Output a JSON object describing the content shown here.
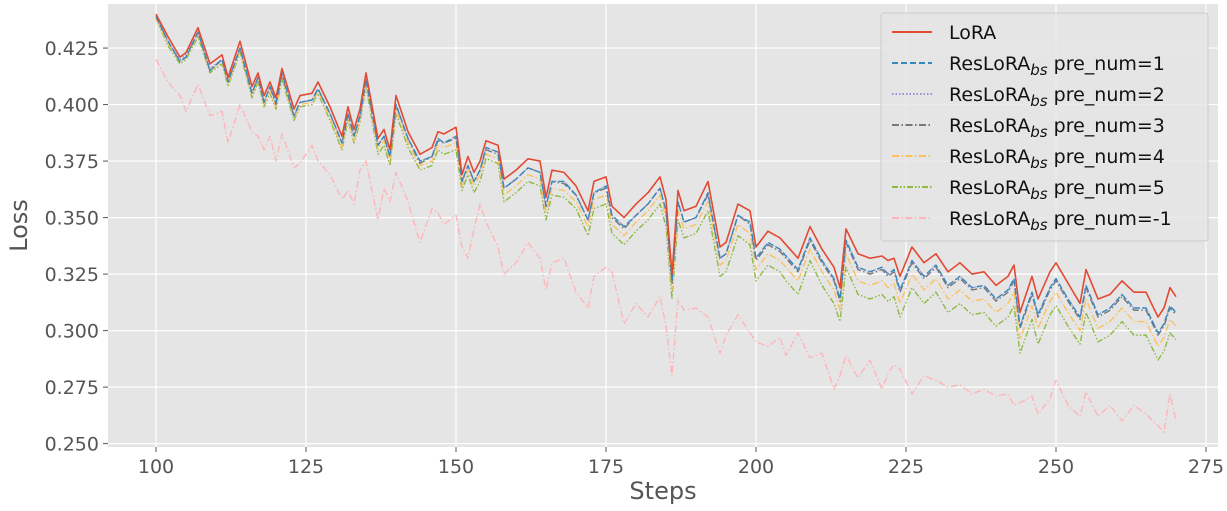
{
  "chart_data": {
    "type": "line",
    "title": "",
    "xlabel": "Steps",
    "ylabel": "Loss",
    "xlim": [
      92,
      277
    ],
    "ylim": [
      0.2485,
      0.4445
    ],
    "x_ticks": [
      100,
      125,
      150,
      175,
      200,
      225,
      250,
      275
    ],
    "x_tick_labels": [
      "100",
      "125",
      "150",
      "175",
      "200",
      "225",
      "250",
      "275"
    ],
    "y_ticks": [
      0.25,
      0.275,
      0.3,
      0.325,
      0.35,
      0.375,
      0.4,
      0.425
    ],
    "y_tick_labels": [
      "0.250",
      "0.275",
      "0.300",
      "0.325",
      "0.350",
      "0.375",
      "0.400",
      "0.425"
    ],
    "grid": true,
    "legend_position": "top-right",
    "x": [
      100,
      102,
      104,
      105,
      107,
      109,
      111,
      112,
      114,
      116,
      117,
      118,
      119,
      120,
      121,
      123,
      124,
      126,
      127,
      129,
      131,
      132,
      133,
      134,
      135,
      137,
      138,
      139,
      140,
      142,
      144,
      146,
      147,
      148,
      150,
      151,
      152,
      153,
      154,
      155,
      157,
      158,
      160,
      162,
      164,
      165,
      166,
      168,
      170,
      172,
      173,
      175,
      176,
      178,
      180,
      182,
      184,
      185,
      186,
      187,
      188,
      190,
      192,
      194,
      195,
      197,
      199,
      200,
      202,
      204,
      205,
      207,
      209,
      211,
      213,
      214,
      215,
      217,
      219,
      221,
      222,
      223,
      224,
      226,
      228,
      230,
      232,
      234,
      236,
      238,
      240,
      242,
      243,
      244,
      246,
      247,
      249,
      250,
      252,
      254,
      255,
      257,
      259,
      261,
      263,
      265,
      267,
      268,
      269,
      270
    ],
    "series": [
      {
        "name": "LoRA",
        "sub": "",
        "suffix": "",
        "color": "#E24A33",
        "style": "solid",
        "values": [
          0.44,
          0.43,
          0.421,
          0.423,
          0.434,
          0.418,
          0.422,
          0.412,
          0.428,
          0.408,
          0.414,
          0.404,
          0.41,
          0.403,
          0.416,
          0.398,
          0.404,
          0.405,
          0.41,
          0.399,
          0.386,
          0.399,
          0.389,
          0.398,
          0.414,
          0.385,
          0.389,
          0.38,
          0.404,
          0.388,
          0.378,
          0.381,
          0.388,
          0.387,
          0.39,
          0.369,
          0.377,
          0.37,
          0.375,
          0.384,
          0.382,
          0.367,
          0.371,
          0.376,
          0.375,
          0.359,
          0.371,
          0.37,
          0.364,
          0.353,
          0.366,
          0.368,
          0.355,
          0.35,
          0.356,
          0.361,
          0.368,
          0.358,
          0.325,
          0.362,
          0.353,
          0.355,
          0.366,
          0.337,
          0.339,
          0.356,
          0.353,
          0.337,
          0.344,
          0.341,
          0.338,
          0.332,
          0.346,
          0.336,
          0.328,
          0.319,
          0.345,
          0.334,
          0.332,
          0.333,
          0.331,
          0.332,
          0.324,
          0.337,
          0.33,
          0.334,
          0.326,
          0.33,
          0.325,
          0.326,
          0.32,
          0.324,
          0.329,
          0.308,
          0.324,
          0.314,
          0.326,
          0.33,
          0.321,
          0.312,
          0.327,
          0.314,
          0.316,
          0.322,
          0.317,
          0.317,
          0.306,
          0.31,
          0.319,
          0.315
        ]
      },
      {
        "name": "ResLoRA",
        "sub": "bs",
        "suffix": " pre_num=1",
        "color": "#348ABD",
        "style": "dashed",
        "values": [
          0.439,
          0.428,
          0.419,
          0.421,
          0.432,
          0.415,
          0.42,
          0.41,
          0.425,
          0.405,
          0.412,
          0.401,
          0.408,
          0.401,
          0.414,
          0.395,
          0.401,
          0.402,
          0.407,
          0.396,
          0.383,
          0.396,
          0.386,
          0.395,
          0.411,
          0.382,
          0.386,
          0.377,
          0.4,
          0.385,
          0.375,
          0.377,
          0.385,
          0.383,
          0.386,
          0.366,
          0.373,
          0.366,
          0.371,
          0.381,
          0.379,
          0.363,
          0.367,
          0.372,
          0.37,
          0.355,
          0.366,
          0.366,
          0.36,
          0.349,
          0.361,
          0.364,
          0.351,
          0.346,
          0.351,
          0.356,
          0.363,
          0.353,
          0.322,
          0.357,
          0.348,
          0.35,
          0.361,
          0.332,
          0.334,
          0.351,
          0.348,
          0.332,
          0.339,
          0.336,
          0.333,
          0.327,
          0.341,
          0.331,
          0.323,
          0.314,
          0.34,
          0.328,
          0.326,
          0.328,
          0.325,
          0.327,
          0.318,
          0.331,
          0.324,
          0.329,
          0.32,
          0.324,
          0.319,
          0.32,
          0.314,
          0.318,
          0.323,
          0.302,
          0.317,
          0.307,
          0.319,
          0.323,
          0.314,
          0.306,
          0.32,
          0.307,
          0.31,
          0.316,
          0.31,
          0.31,
          0.299,
          0.303,
          0.311,
          0.308
        ]
      },
      {
        "name": "ResLoRA",
        "sub": "bs",
        "suffix": " pre_num=2",
        "color": "#988ED5",
        "style": "dotted",
        "values": [
          0.439,
          0.428,
          0.42,
          0.422,
          0.432,
          0.416,
          0.42,
          0.41,
          0.425,
          0.405,
          0.412,
          0.401,
          0.408,
          0.401,
          0.414,
          0.395,
          0.401,
          0.402,
          0.407,
          0.396,
          0.383,
          0.396,
          0.386,
          0.395,
          0.411,
          0.382,
          0.386,
          0.377,
          0.4,
          0.385,
          0.375,
          0.377,
          0.385,
          0.383,
          0.386,
          0.366,
          0.373,
          0.366,
          0.371,
          0.381,
          0.379,
          0.363,
          0.367,
          0.372,
          0.37,
          0.355,
          0.366,
          0.366,
          0.36,
          0.349,
          0.361,
          0.364,
          0.351,
          0.346,
          0.351,
          0.356,
          0.363,
          0.353,
          0.322,
          0.357,
          0.348,
          0.35,
          0.361,
          0.332,
          0.334,
          0.351,
          0.348,
          0.332,
          0.339,
          0.336,
          0.333,
          0.327,
          0.341,
          0.331,
          0.323,
          0.314,
          0.34,
          0.328,
          0.326,
          0.328,
          0.325,
          0.327,
          0.318,
          0.331,
          0.324,
          0.329,
          0.32,
          0.324,
          0.319,
          0.32,
          0.314,
          0.318,
          0.323,
          0.302,
          0.317,
          0.307,
          0.319,
          0.323,
          0.314,
          0.306,
          0.32,
          0.307,
          0.31,
          0.316,
          0.31,
          0.31,
          0.299,
          0.303,
          0.311,
          0.308
        ]
      },
      {
        "name": "ResLoRA",
        "sub": "bs",
        "suffix": " pre_num=3",
        "color": "#777777",
        "style": "dashdot",
        "values": [
          0.439,
          0.428,
          0.419,
          0.421,
          0.432,
          0.415,
          0.42,
          0.41,
          0.425,
          0.405,
          0.412,
          0.401,
          0.408,
          0.4,
          0.413,
          0.395,
          0.401,
          0.402,
          0.407,
          0.396,
          0.383,
          0.396,
          0.386,
          0.395,
          0.411,
          0.382,
          0.386,
          0.377,
          0.4,
          0.385,
          0.374,
          0.377,
          0.384,
          0.383,
          0.385,
          0.366,
          0.373,
          0.366,
          0.371,
          0.38,
          0.378,
          0.363,
          0.367,
          0.372,
          0.37,
          0.355,
          0.366,
          0.365,
          0.36,
          0.349,
          0.361,
          0.363,
          0.35,
          0.345,
          0.351,
          0.356,
          0.363,
          0.353,
          0.321,
          0.357,
          0.348,
          0.35,
          0.36,
          0.332,
          0.334,
          0.351,
          0.347,
          0.331,
          0.338,
          0.335,
          0.332,
          0.326,
          0.34,
          0.33,
          0.322,
          0.313,
          0.339,
          0.327,
          0.325,
          0.327,
          0.324,
          0.326,
          0.317,
          0.33,
          0.323,
          0.328,
          0.319,
          0.323,
          0.318,
          0.319,
          0.313,
          0.317,
          0.322,
          0.301,
          0.316,
          0.306,
          0.318,
          0.322,
          0.313,
          0.305,
          0.319,
          0.306,
          0.309,
          0.315,
          0.309,
          0.309,
          0.298,
          0.302,
          0.31,
          0.307
        ]
      },
      {
        "name": "ResLoRA",
        "sub": "bs",
        "suffix": " pre_num=4",
        "color": "#FBC15E",
        "style": "dashdot",
        "values": [
          0.438,
          0.427,
          0.419,
          0.421,
          0.431,
          0.415,
          0.419,
          0.409,
          0.424,
          0.404,
          0.411,
          0.4,
          0.406,
          0.399,
          0.412,
          0.394,
          0.4,
          0.401,
          0.406,
          0.394,
          0.381,
          0.394,
          0.384,
          0.393,
          0.409,
          0.38,
          0.384,
          0.375,
          0.398,
          0.383,
          0.373,
          0.375,
          0.382,
          0.381,
          0.383,
          0.364,
          0.371,
          0.364,
          0.369,
          0.378,
          0.376,
          0.36,
          0.364,
          0.369,
          0.367,
          0.352,
          0.363,
          0.362,
          0.357,
          0.346,
          0.358,
          0.36,
          0.347,
          0.342,
          0.348,
          0.353,
          0.36,
          0.35,
          0.318,
          0.353,
          0.345,
          0.347,
          0.357,
          0.329,
          0.331,
          0.347,
          0.343,
          0.327,
          0.334,
          0.331,
          0.328,
          0.322,
          0.336,
          0.326,
          0.318,
          0.309,
          0.334,
          0.322,
          0.32,
          0.322,
          0.319,
          0.321,
          0.312,
          0.325,
          0.318,
          0.323,
          0.314,
          0.318,
          0.313,
          0.314,
          0.308,
          0.312,
          0.317,
          0.296,
          0.311,
          0.301,
          0.313,
          0.317,
          0.308,
          0.3,
          0.314,
          0.301,
          0.304,
          0.31,
          0.304,
          0.304,
          0.293,
          0.297,
          0.305,
          0.302
        ]
      },
      {
        "name": "ResLoRA",
        "sub": "bs",
        "suffix": " pre_num=5",
        "color": "#8EBA42",
        "style": "dashdotdot",
        "values": [
          0.438,
          0.426,
          0.418,
          0.42,
          0.43,
          0.414,
          0.418,
          0.408,
          0.423,
          0.403,
          0.41,
          0.399,
          0.405,
          0.398,
          0.411,
          0.393,
          0.399,
          0.4,
          0.405,
          0.393,
          0.38,
          0.393,
          0.383,
          0.392,
          0.408,
          0.378,
          0.382,
          0.373,
          0.396,
          0.381,
          0.371,
          0.373,
          0.38,
          0.378,
          0.38,
          0.362,
          0.369,
          0.361,
          0.366,
          0.376,
          0.374,
          0.357,
          0.361,
          0.366,
          0.364,
          0.349,
          0.36,
          0.359,
          0.354,
          0.342,
          0.354,
          0.356,
          0.343,
          0.338,
          0.344,
          0.349,
          0.356,
          0.346,
          0.314,
          0.349,
          0.341,
          0.343,
          0.353,
          0.324,
          0.326,
          0.342,
          0.338,
          0.322,
          0.329,
          0.326,
          0.322,
          0.316,
          0.331,
          0.32,
          0.312,
          0.304,
          0.328,
          0.316,
          0.314,
          0.316,
          0.313,
          0.315,
          0.306,
          0.319,
          0.312,
          0.317,
          0.308,
          0.312,
          0.307,
          0.308,
          0.302,
          0.306,
          0.311,
          0.29,
          0.305,
          0.294,
          0.307,
          0.311,
          0.302,
          0.294,
          0.308,
          0.295,
          0.298,
          0.304,
          0.298,
          0.298,
          0.287,
          0.291,
          0.299,
          0.296
        ]
      },
      {
        "name": "ResLoRA",
        "sub": "bs",
        "suffix": " pre_num=-1",
        "color": "#FFB5B8",
        "style": "dashdot",
        "values": [
          0.42,
          0.41,
          0.404,
          0.397,
          0.409,
          0.395,
          0.397,
          0.383,
          0.4,
          0.388,
          0.386,
          0.38,
          0.386,
          0.375,
          0.387,
          0.372,
          0.374,
          0.382,
          0.375,
          0.369,
          0.358,
          0.362,
          0.356,
          0.371,
          0.375,
          0.349,
          0.363,
          0.357,
          0.37,
          0.357,
          0.339,
          0.354,
          0.352,
          0.347,
          0.351,
          0.337,
          0.332,
          0.345,
          0.356,
          0.348,
          0.337,
          0.325,
          0.33,
          0.339,
          0.332,
          0.318,
          0.33,
          0.332,
          0.317,
          0.31,
          0.324,
          0.328,
          0.326,
          0.303,
          0.312,
          0.306,
          0.315,
          0.302,
          0.28,
          0.314,
          0.309,
          0.31,
          0.306,
          0.29,
          0.298,
          0.307,
          0.299,
          0.295,
          0.293,
          0.297,
          0.289,
          0.299,
          0.288,
          0.29,
          0.274,
          0.28,
          0.289,
          0.279,
          0.287,
          0.274,
          0.281,
          0.285,
          0.283,
          0.272,
          0.28,
          0.278,
          0.275,
          0.276,
          0.272,
          0.274,
          0.271,
          0.272,
          0.267,
          0.268,
          0.271,
          0.263,
          0.27,
          0.278,
          0.267,
          0.262,
          0.273,
          0.262,
          0.267,
          0.26,
          0.267,
          0.263,
          0.258,
          0.255,
          0.272,
          0.26
        ]
      }
    ]
  }
}
